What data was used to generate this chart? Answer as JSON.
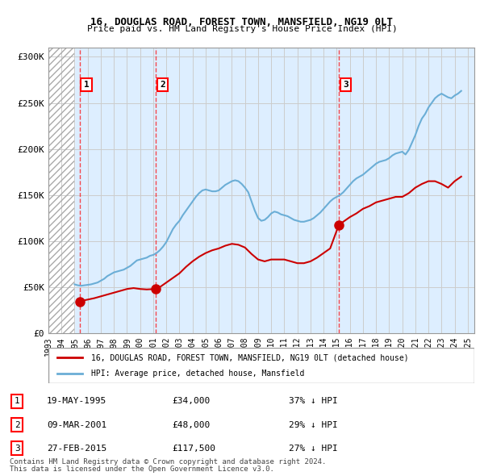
{
  "title": "16, DOUGLAS ROAD, FOREST TOWN, MANSFIELD, NG19 0LT",
  "subtitle": "Price paid vs. HM Land Registry's House Price Index (HPI)",
  "ylabel_ticks": [
    "£0",
    "£50K",
    "£100K",
    "£150K",
    "£200K",
    "£250K",
    "£300K"
  ],
  "ytick_values": [
    0,
    50000,
    100000,
    150000,
    200000,
    250000,
    300000
  ],
  "ylim": [
    0,
    310000
  ],
  "xlim_start": 1993.0,
  "xlim_end": 2025.5,
  "sale_dates": [
    1995.38,
    2001.19,
    2015.16
  ],
  "sale_prices": [
    34000,
    48000,
    117500
  ],
  "sale_labels": [
    "1",
    "2",
    "3"
  ],
  "sale_label_dates_str": [
    "19-MAY-1995",
    "09-MAR-2001",
    "27-FEB-2015"
  ],
  "sale_prices_str": [
    "£34,000",
    "£48,000",
    "£117,500"
  ],
  "sale_hpi_pct": [
    "37% ↓ HPI",
    "29% ↓ HPI",
    "27% ↓ HPI"
  ],
  "hpi_line_color": "#6baed6",
  "price_line_color": "#cc0000",
  "marker_color": "#cc0000",
  "hatch_color": "#bbbbbb",
  "bg_color": "#ddeeff",
  "grid_color": "#cccccc",
  "legend_label_red": "16, DOUGLAS ROAD, FOREST TOWN, MANSFIELD, NG19 0LT (detached house)",
  "legend_label_blue": "HPI: Average price, detached house, Mansfield",
  "footer1": "Contains HM Land Registry data © Crown copyright and database right 2024.",
  "footer2": "This data is licensed under the Open Government Licence v3.0.",
  "hpi_data_x": [
    1995.0,
    1995.25,
    1995.5,
    1995.75,
    1996.0,
    1996.25,
    1996.5,
    1996.75,
    1997.0,
    1997.25,
    1997.5,
    1997.75,
    1998.0,
    1998.25,
    1998.5,
    1998.75,
    1999.0,
    1999.25,
    1999.5,
    1999.75,
    2000.0,
    2000.25,
    2000.5,
    2000.75,
    2001.0,
    2001.25,
    2001.5,
    2001.75,
    2002.0,
    2002.25,
    2002.5,
    2002.75,
    2003.0,
    2003.25,
    2003.5,
    2003.75,
    2004.0,
    2004.25,
    2004.5,
    2004.75,
    2005.0,
    2005.25,
    2005.5,
    2005.75,
    2006.0,
    2006.25,
    2006.5,
    2006.75,
    2007.0,
    2007.25,
    2007.5,
    2007.75,
    2008.0,
    2008.25,
    2008.5,
    2008.75,
    2009.0,
    2009.25,
    2009.5,
    2009.75,
    2010.0,
    2010.25,
    2010.5,
    2010.75,
    2011.0,
    2011.25,
    2011.5,
    2011.75,
    2012.0,
    2012.25,
    2012.5,
    2012.75,
    2013.0,
    2013.25,
    2013.5,
    2013.75,
    2014.0,
    2014.25,
    2014.5,
    2014.75,
    2015.0,
    2015.25,
    2015.5,
    2015.75,
    2016.0,
    2016.25,
    2016.5,
    2016.75,
    2017.0,
    2017.25,
    2017.5,
    2017.75,
    2018.0,
    2018.25,
    2018.5,
    2018.75,
    2019.0,
    2019.25,
    2019.5,
    2019.75,
    2020.0,
    2020.25,
    2020.5,
    2020.75,
    2021.0,
    2021.25,
    2021.5,
    2021.75,
    2022.0,
    2022.25,
    2022.5,
    2022.75,
    2023.0,
    2023.25,
    2023.5,
    2023.75,
    2024.0,
    2024.25,
    2024.5
  ],
  "hpi_data_y": [
    53000,
    52000,
    51500,
    52000,
    52500,
    53000,
    54000,
    55000,
    57000,
    59000,
    62000,
    64000,
    66000,
    67000,
    68000,
    69000,
    71000,
    73000,
    76000,
    79000,
    80000,
    81000,
    82000,
    84000,
    85000,
    87000,
    90000,
    94000,
    99000,
    106000,
    113000,
    118000,
    122000,
    128000,
    133000,
    138000,
    143000,
    148000,
    152000,
    155000,
    156000,
    155000,
    154000,
    154000,
    155000,
    158000,
    161000,
    163000,
    165000,
    166000,
    165000,
    162000,
    158000,
    153000,
    143000,
    133000,
    125000,
    122000,
    123000,
    126000,
    130000,
    132000,
    131000,
    129000,
    128000,
    127000,
    125000,
    123000,
    122000,
    121000,
    121000,
    122000,
    123000,
    125000,
    128000,
    131000,
    135000,
    139000,
    143000,
    146000,
    148000,
    150000,
    153000,
    157000,
    161000,
    165000,
    168000,
    170000,
    172000,
    175000,
    178000,
    181000,
    184000,
    186000,
    187000,
    188000,
    190000,
    193000,
    195000,
    196000,
    197000,
    194000,
    199000,
    207000,
    215000,
    225000,
    233000,
    238000,
    245000,
    250000,
    255000,
    258000,
    260000,
    258000,
    256000,
    255000,
    258000,
    260000,
    263000
  ],
  "price_data_x": [
    1995.38,
    1995.5,
    1996.0,
    1996.5,
    1997.0,
    1997.5,
    1998.0,
    1998.5,
    1999.0,
    1999.5,
    2000.0,
    2000.5,
    2001.19,
    2001.5,
    2002.0,
    2002.5,
    2003.0,
    2003.5,
    2004.0,
    2004.5,
    2005.0,
    2005.5,
    2006.0,
    2006.5,
    2007.0,
    2007.5,
    2008.0,
    2008.5,
    2009.0,
    2009.5,
    2010.0,
    2010.5,
    2011.0,
    2011.5,
    2012.0,
    2012.5,
    2013.0,
    2013.5,
    2014.0,
    2014.5,
    2015.16,
    2015.5,
    2016.0,
    2016.5,
    2017.0,
    2017.5,
    2018.0,
    2018.5,
    2019.0,
    2019.5,
    2020.0,
    2020.5,
    2021.0,
    2021.5,
    2022.0,
    2022.5,
    2023.0,
    2023.5,
    2024.0,
    2024.5
  ],
  "price_data_y": [
    34000,
    35000,
    36500,
    38000,
    40000,
    42000,
    44000,
    46000,
    48000,
    49000,
    48000,
    47500,
    48000,
    50000,
    55000,
    60000,
    65000,
    72000,
    78000,
    83000,
    87000,
    90000,
    92000,
    95000,
    97000,
    96000,
    93000,
    86000,
    80000,
    78000,
    80000,
    80000,
    80000,
    78000,
    76000,
    76000,
    78000,
    82000,
    87000,
    92000,
    117500,
    121000,
    126000,
    130000,
    135000,
    138000,
    142000,
    144000,
    146000,
    148000,
    148000,
    152000,
    158000,
    162000,
    165000,
    165000,
    162000,
    158000,
    165000,
    170000
  ]
}
